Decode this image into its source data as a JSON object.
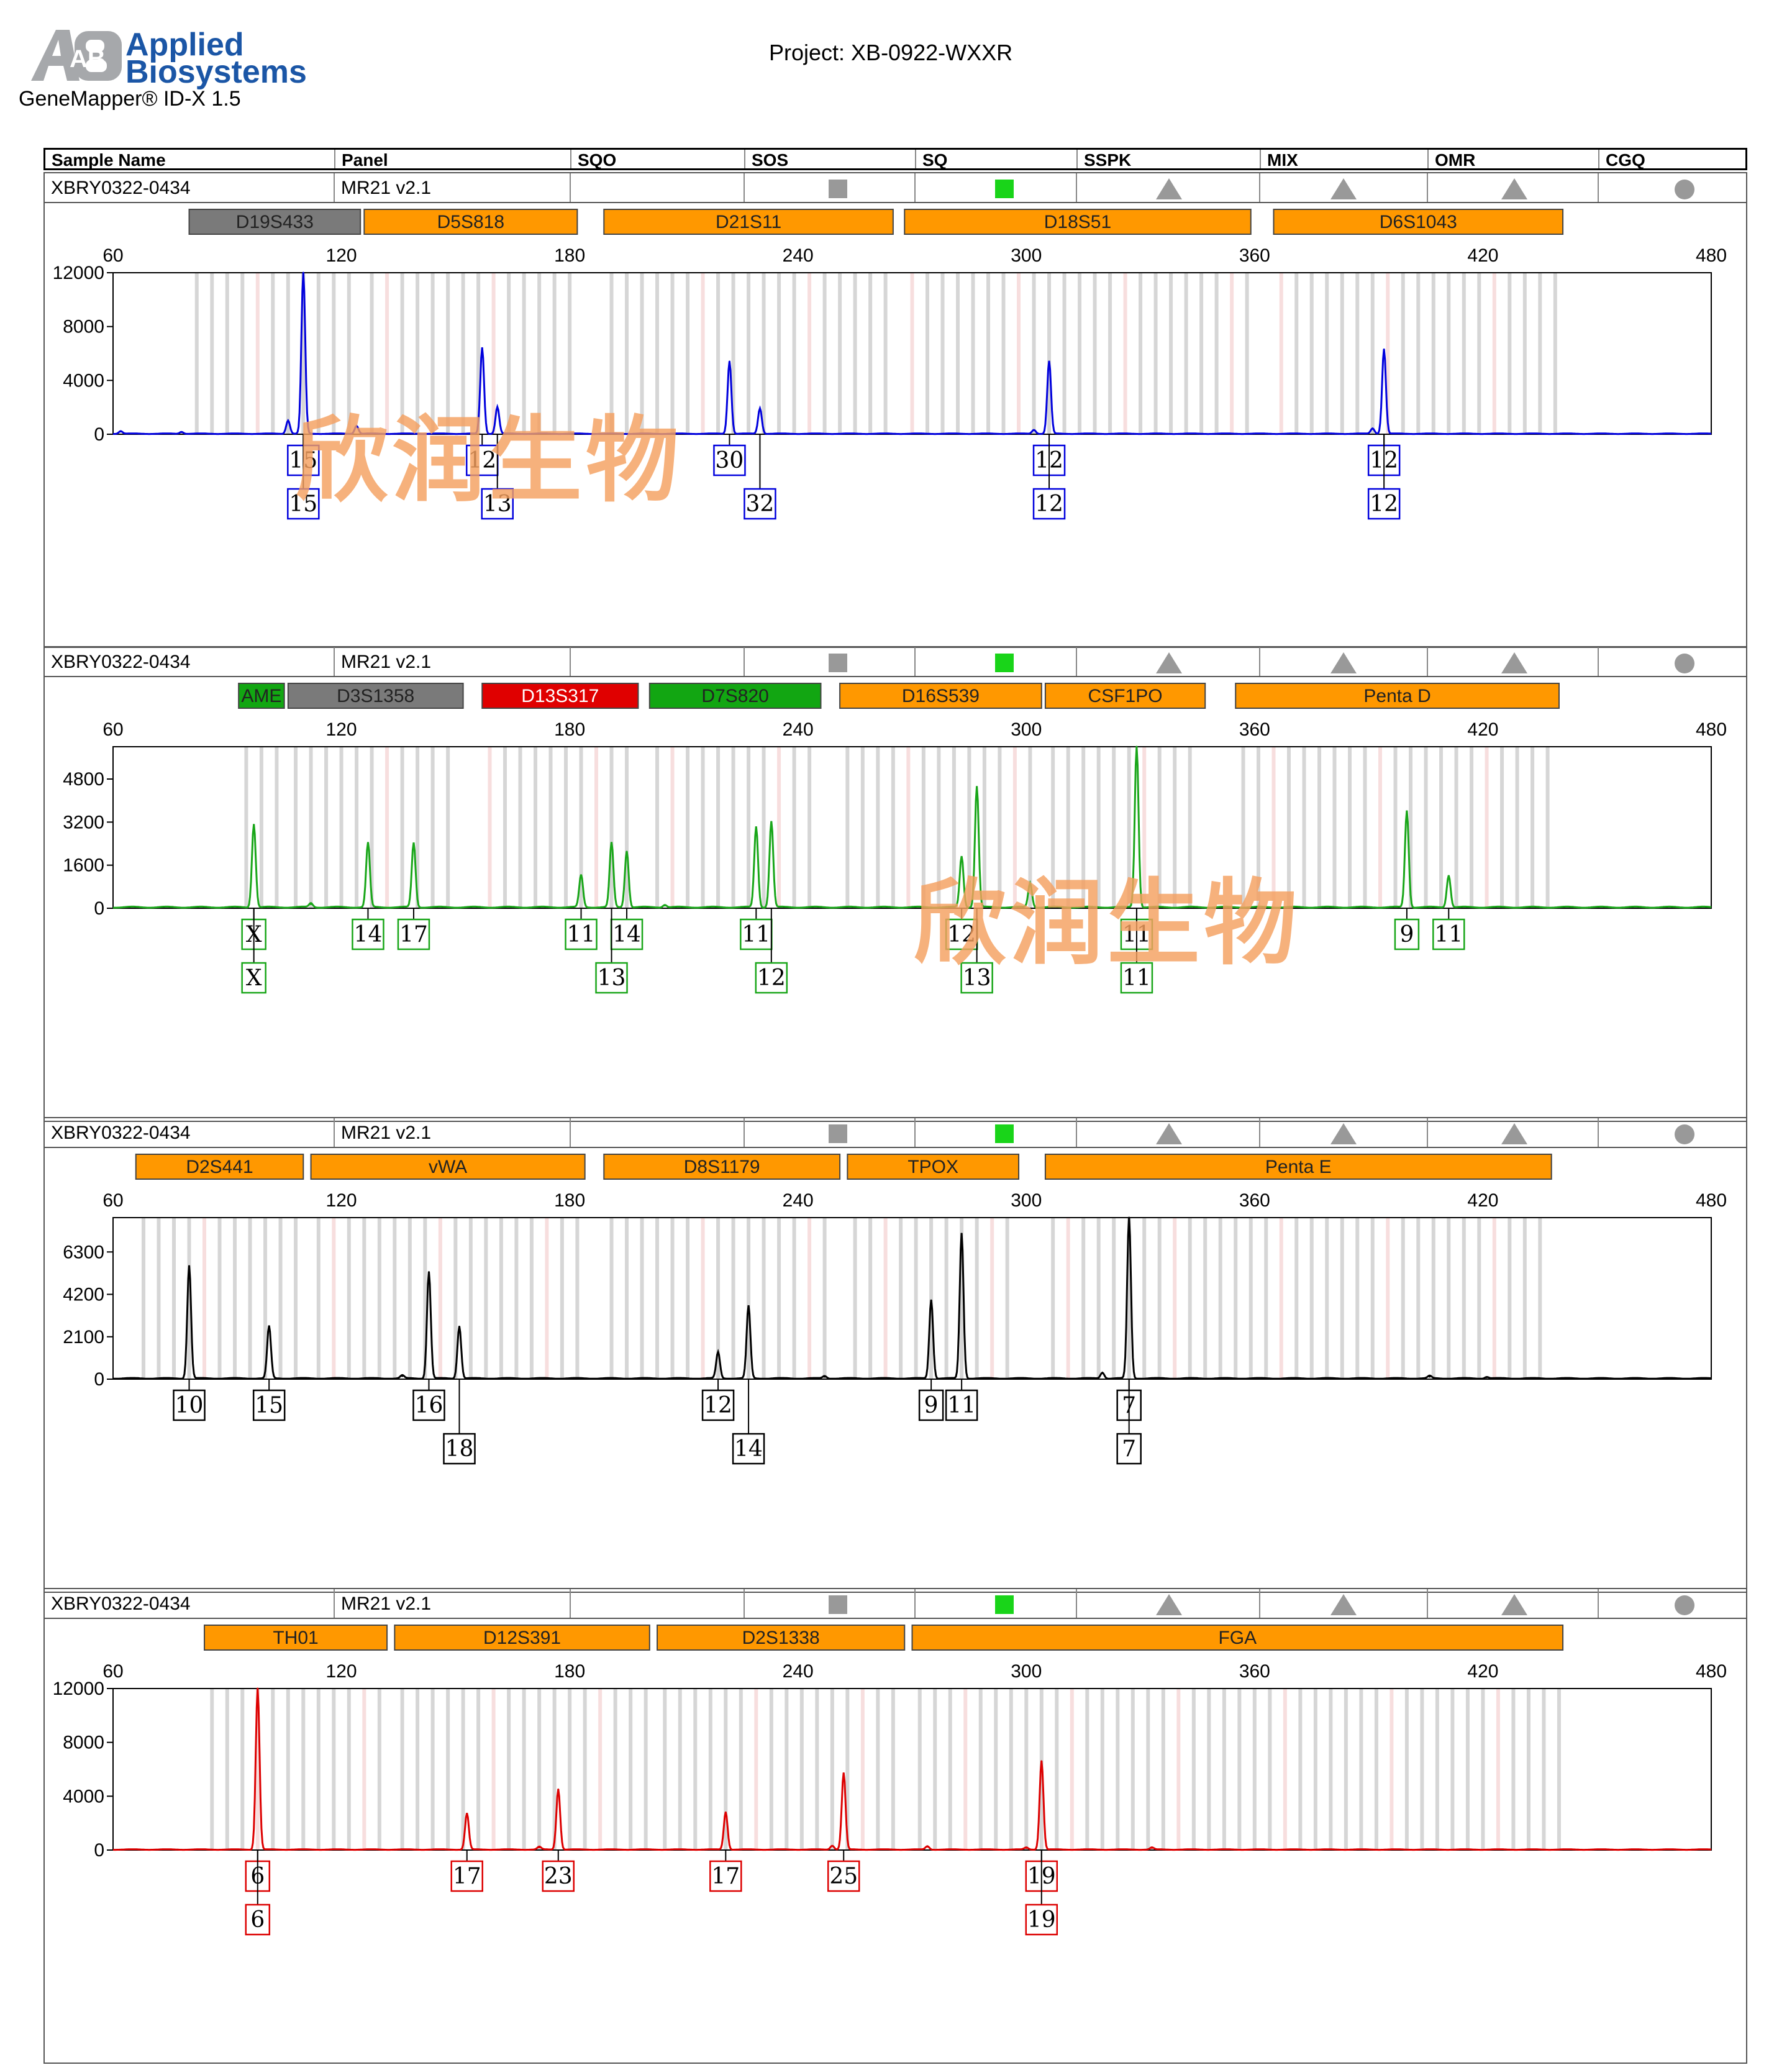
{
  "app": {
    "brand_line1": "Applied",
    "brand_line2": "Biosystems",
    "software": "GeneMapper® ID-X  1.5",
    "logo_mark": "AB"
  },
  "project": "Project: XB-0922-WXXR",
  "header": [
    "Sample Name",
    "Panel",
    "SQO",
    "SOS",
    "SQ",
    "SSPK",
    "MIX",
    "OMR",
    "CGQ"
  ],
  "watermark": "欣润生物",
  "indicators": [
    {
      "name": "sos-indicator",
      "shape": "square",
      "color": "#999999"
    },
    {
      "name": "sq-indicator",
      "shape": "square",
      "color": "#19d419"
    },
    {
      "name": "sspk-indicator",
      "shape": "triangle",
      "color": "#999999"
    },
    {
      "name": "mix-indicator",
      "shape": "triangle",
      "color": "#999999"
    },
    {
      "name": "omr-indicator",
      "shape": "triangle",
      "color": "#999999"
    },
    {
      "name": "cgq-indicator",
      "shape": "circle",
      "color": "#999999"
    }
  ],
  "chart_data": [
    {
      "type": "line",
      "sample": "XBRY0322-0434",
      "panel": "MR21  v2.1",
      "color": "#0000dd",
      "xlim": [
        60,
        480
      ],
      "xticks": [
        60,
        120,
        180,
        240,
        300,
        360,
        420,
        480
      ],
      "ylim": [
        0,
        12000
      ],
      "yticks": [
        0,
        4000,
        8000,
        12000
      ],
      "markers": [
        {
          "name": "D19S433",
          "start": 80,
          "end": 125,
          "color": "#7a7a7a"
        },
        {
          "name": "D5S818",
          "start": 126,
          "end": 182,
          "color": "#ff9800"
        },
        {
          "name": "D21S11",
          "start": 189,
          "end": 265,
          "color": "#ff9800"
        },
        {
          "name": "D18S51",
          "start": 268,
          "end": 359,
          "color": "#ff9800"
        },
        {
          "name": "D6S1043",
          "start": 365,
          "end": 441,
          "color": "#ff9800"
        }
      ],
      "peaks": [
        [
          106,
          1000
        ],
        [
          110,
          12000
        ],
        [
          124,
          600
        ],
        [
          157,
          6400
        ],
        [
          161,
          2000
        ],
        [
          222,
          5400
        ],
        [
          230,
          1900
        ],
        [
          306,
          5400
        ],
        [
          302,
          300
        ],
        [
          394,
          6300
        ],
        [
          391,
          400
        ],
        [
          78,
          150
        ],
        [
          62,
          200
        ]
      ],
      "alleles": [
        {
          "x": 110,
          "row": 1,
          "label": "15"
        },
        {
          "x": 110,
          "row": 2,
          "label": "15"
        },
        {
          "x": 157,
          "row": 1,
          "label": "12"
        },
        {
          "x": 161,
          "row": 2,
          "label": "13"
        },
        {
          "x": 222,
          "row": 1,
          "label": "30"
        },
        {
          "x": 230,
          "row": 2,
          "label": "32"
        },
        {
          "x": 306,
          "row": 1,
          "label": "12"
        },
        {
          "x": 306,
          "row": 2,
          "label": "12"
        },
        {
          "x": 394,
          "row": 1,
          "label": "12"
        },
        {
          "x": 394,
          "row": 2,
          "label": "12"
        }
      ]
    },
    {
      "type": "line",
      "sample": "XBRY0322-0434",
      "panel": "MR21  v2.1",
      "color": "#19a619",
      "xlim": [
        60,
        480
      ],
      "xticks": [
        60,
        120,
        180,
        240,
        300,
        360,
        420,
        480
      ],
      "ylim": [
        0,
        6000
      ],
      "yticks": [
        0,
        1600,
        3200,
        4800
      ],
      "markers": [
        {
          "name": "AME",
          "start": 93,
          "end": 105,
          "color": "#12a612"
        },
        {
          "name": "D3S1358",
          "start": 106,
          "end": 152,
          "color": "#7a7a7a"
        },
        {
          "name": "D13S317",
          "start": 157,
          "end": 198,
          "color": "#e00000"
        },
        {
          "name": "D7S820",
          "start": 201,
          "end": 246,
          "color": "#12a612"
        },
        {
          "name": "D16S539",
          "start": 251,
          "end": 304,
          "color": "#ff9800"
        },
        {
          "name": "CSF1PO",
          "start": 305,
          "end": 347,
          "color": "#ff9800"
        },
        {
          "name": "Penta D",
          "start": 355,
          "end": 440,
          "color": "#ff9800"
        }
      ],
      "peaks": [
        [
          97,
          3100
        ],
        [
          127,
          2400
        ],
        [
          139,
          2400
        ],
        [
          183,
          1200
        ],
        [
          191,
          2400
        ],
        [
          195,
          2100
        ],
        [
          229,
          3000
        ],
        [
          233,
          3200
        ],
        [
          283,
          1900
        ],
        [
          287,
          4500
        ],
        [
          301,
          900
        ],
        [
          329,
          6000
        ],
        [
          400,
          3600
        ],
        [
          411,
          1200
        ],
        [
          112,
          150
        ],
        [
          205,
          100
        ]
      ],
      "alleles": [
        {
          "x": 97,
          "row": 1,
          "label": "X"
        },
        {
          "x": 97,
          "row": 2,
          "label": "X"
        },
        {
          "x": 127,
          "row": 1,
          "label": "14"
        },
        {
          "x": 139,
          "row": 1,
          "label": "17"
        },
        {
          "x": 183,
          "row": 1,
          "label": "11"
        },
        {
          "x": 195,
          "row": 1,
          "label": "14"
        },
        {
          "x": 191,
          "row": 2,
          "label": "13"
        },
        {
          "x": 229,
          "row": 1,
          "label": "11"
        },
        {
          "x": 233,
          "row": 2,
          "label": "12"
        },
        {
          "x": 283,
          "row": 1,
          "label": "12"
        },
        {
          "x": 287,
          "row": 2,
          "label": "13"
        },
        {
          "x": 329,
          "row": 1,
          "label": "11"
        },
        {
          "x": 329,
          "row": 2,
          "label": "11"
        },
        {
          "x": 400,
          "row": 1,
          "label": "9"
        },
        {
          "x": 411,
          "row": 1,
          "label": "11"
        }
      ]
    },
    {
      "type": "line",
      "sample": "XBRY0322-0434",
      "panel": "MR21  v2.1",
      "color": "#000000",
      "xlim": [
        60,
        480
      ],
      "xticks": [
        60,
        120,
        180,
        240,
        300,
        360,
        420,
        480
      ],
      "ylim": [
        0,
        8000
      ],
      "yticks": [
        0,
        2100,
        4200,
        6300
      ],
      "markers": [
        {
          "name": "D2S441",
          "start": 66,
          "end": 110,
          "color": "#ff9800"
        },
        {
          "name": "vWA",
          "start": 112,
          "end": 184,
          "color": "#ff9800"
        },
        {
          "name": "D8S1179",
          "start": 189,
          "end": 251,
          "color": "#ff9800"
        },
        {
          "name": "TPOX",
          "start": 253,
          "end": 298,
          "color": "#ff9800"
        },
        {
          "name": "Penta E",
          "start": 305,
          "end": 438,
          "color": "#ff9800"
        }
      ],
      "peaks": [
        [
          80,
          5600
        ],
        [
          101,
          2600
        ],
        [
          143,
          5300
        ],
        [
          151,
          2600
        ],
        [
          219,
          1300
        ],
        [
          227,
          3600
        ],
        [
          275,
          3900
        ],
        [
          283,
          7200
        ],
        [
          327,
          8000
        ],
        [
          136,
          150
        ],
        [
          247,
          120
        ],
        [
          320,
          300
        ],
        [
          406,
          120
        ],
        [
          421,
          80
        ]
      ],
      "alleles": [
        {
          "x": 80,
          "row": 1,
          "label": "10"
        },
        {
          "x": 101,
          "row": 1,
          "label": "15"
        },
        {
          "x": 143,
          "row": 1,
          "label": "16"
        },
        {
          "x": 151,
          "row": 2,
          "label": "18"
        },
        {
          "x": 219,
          "row": 1,
          "label": "12"
        },
        {
          "x": 227,
          "row": 2,
          "label": "14"
        },
        {
          "x": 275,
          "row": 1,
          "label": "9"
        },
        {
          "x": 283,
          "row": 1,
          "label": "11"
        },
        {
          "x": 327,
          "row": 1,
          "label": "7"
        },
        {
          "x": 327,
          "row": 2,
          "label": "7"
        }
      ]
    },
    {
      "type": "line",
      "sample": "XBRY0322-0434",
      "panel": "MR21  v2.1",
      "color": "#dd0000",
      "xlim": [
        60,
        480
      ],
      "xticks": [
        60,
        120,
        180,
        240,
        300,
        360,
        420,
        480
      ],
      "ylim": [
        0,
        12000
      ],
      "yticks": [
        0,
        4000,
        8000,
        12000
      ],
      "markers": [
        {
          "name": "TH01",
          "start": 84,
          "end": 132,
          "color": "#ff9800"
        },
        {
          "name": "D12S391",
          "start": 134,
          "end": 201,
          "color": "#ff9800"
        },
        {
          "name": "D2S1338",
          "start": 203,
          "end": 268,
          "color": "#ff9800"
        },
        {
          "name": "FGA",
          "start": 270,
          "end": 441,
          "color": "#ff9800"
        }
      ],
      "peaks": [
        [
          98,
          12000
        ],
        [
          153,
          2700
        ],
        [
          177,
          4500
        ],
        [
          221,
          2800
        ],
        [
          252,
          5700
        ],
        [
          304,
          6600
        ],
        [
          274,
          250
        ],
        [
          300,
          150
        ],
        [
          172,
          200
        ],
        [
          249,
          300
        ],
        [
          333,
          150
        ]
      ],
      "alleles": [
        {
          "x": 98,
          "row": 1,
          "label": "6"
        },
        {
          "x": 98,
          "row": 2,
          "label": "6"
        },
        {
          "x": 153,
          "row": 1,
          "label": "17"
        },
        {
          "x": 177,
          "row": 1,
          "label": "23"
        },
        {
          "x": 221,
          "row": 1,
          "label": "17"
        },
        {
          "x": 252,
          "row": 1,
          "label": "25"
        },
        {
          "x": 304,
          "row": 1,
          "label": "19"
        },
        {
          "x": 304,
          "row": 2,
          "label": "19"
        }
      ]
    }
  ]
}
